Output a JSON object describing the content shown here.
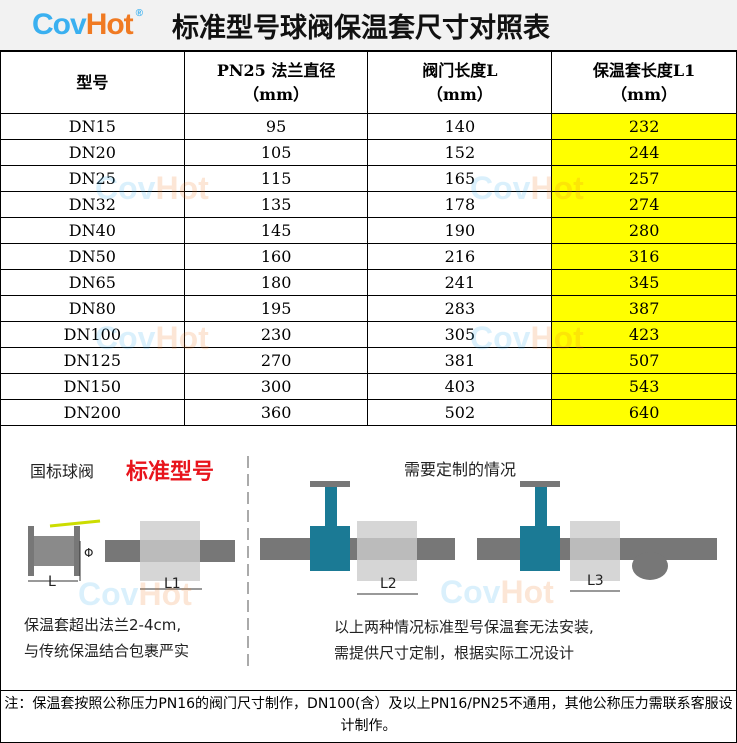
{
  "brand": {
    "part1": "Cov",
    "part2": "Hot",
    "reg": "®"
  },
  "title": "标准型号球阀保温套尺寸对照表",
  "headers": [
    [
      "型号",
      ""
    ],
    [
      "PN25 法兰直径",
      "（mm）"
    ],
    [
      "阀门长度L",
      "（mm）"
    ],
    [
      "保温套长度L1",
      "（mm）"
    ]
  ],
  "rows": [
    [
      "DN15",
      "95",
      "140",
      "232"
    ],
    [
      "DN20",
      "105",
      "152",
      "244"
    ],
    [
      "DN25",
      "115",
      "165",
      "257"
    ],
    [
      "DN32",
      "135",
      "178",
      "274"
    ],
    [
      "DN40",
      "145",
      "190",
      "280"
    ],
    [
      "DN50",
      "160",
      "216",
      "316"
    ],
    [
      "DN65",
      "180",
      "241",
      "345"
    ],
    [
      "DN80",
      "195",
      "283",
      "387"
    ],
    [
      "DN100",
      "230",
      "305",
      "423"
    ],
    [
      "DN125",
      "270",
      "381",
      "507"
    ],
    [
      "DN150",
      "300",
      "403",
      "543"
    ],
    [
      "DN200",
      "360",
      "502",
      "640"
    ]
  ],
  "highlight_color": "#ffff00",
  "diagram": {
    "left_title": "国标球阀",
    "left_badge": "标准型号",
    "right_title": "需要定制的情况",
    "dims": {
      "l": "L",
      "l1": "L1",
      "l2": "L2",
      "l3": "L3",
      "phi": "Φ"
    },
    "left_desc": [
      "保温套超出法兰2-4cm,",
      "与传统保温结合包裹严实"
    ],
    "right_desc": [
      "以上两种情况标准型号保温套无法安装,",
      "需提供尺寸定制，根据实际工况设计"
    ]
  },
  "note": "注：保温套按照公称压力PN16的阀门尺寸制作，DN100(含）及以上PN16/PN25不通用，其他公称压力需联系客服设计制作。"
}
